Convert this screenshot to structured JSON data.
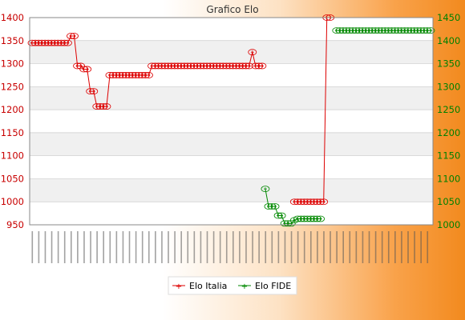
{
  "chart_data": {
    "type": "line",
    "title": "Grafico Elo",
    "y_left": {
      "min": 950,
      "max": 1400,
      "ticks": [
        950,
        1000,
        1050,
        1100,
        1150,
        1200,
        1250,
        1300,
        1350,
        1400
      ]
    },
    "y_right": {
      "min": 1000,
      "max": 1450,
      "ticks": [
        1000,
        1050,
        1100,
        1150,
        1200,
        1250,
        1300,
        1350,
        1400,
        1450
      ]
    },
    "legend_position": "bottom",
    "series": [
      {
        "name": "Elo Italia",
        "color": "#dd0000",
        "axis": "left",
        "start": 0,
        "values": [
          1345,
          1345,
          1345,
          1345,
          1345,
          1345,
          1345,
          1345,
          1345,
          1345,
          1345,
          1345,
          1360,
          1360,
          1295,
          1295,
          1288,
          1288,
          1240,
          1240,
          1207,
          1207,
          1207,
          1207,
          1275,
          1275,
          1275,
          1275,
          1275,
          1275,
          1275,
          1275,
          1275,
          1275,
          1275,
          1275,
          1275,
          1295,
          1295,
          1295,
          1295,
          1295,
          1295,
          1295,
          1295,
          1295,
          1295,
          1295,
          1295,
          1295,
          1295,
          1295,
          1295,
          1295,
          1295,
          1295,
          1295,
          1295,
          1295,
          1295,
          1295,
          1295,
          1295,
          1295,
          1295,
          1295,
          1295,
          1295,
          1325,
          1295,
          1295,
          1295,
          null,
          null,
          null,
          null,
          null,
          null,
          null,
          null,
          null,
          1000,
          1000,
          1000,
          1000,
          1000,
          1000,
          1000,
          1000,
          1000,
          1000,
          1400,
          1400
        ]
      },
      {
        "name": "Elo FIDE",
        "color": "#008800",
        "axis": "right",
        "start": 72,
        "values": [
          1078,
          1040,
          1040,
          1040,
          1020,
          1020,
          1003,
          1003,
          1003,
          1010,
          1013,
          1013,
          1013,
          1013,
          1013,
          1013,
          1013,
          1013,
          null,
          null,
          null,
          null,
          1422,
          1422,
          1422,
          1422,
          1422,
          1422,
          1422,
          1422,
          1422,
          1422,
          1422,
          1422,
          1422,
          1422,
          1422,
          1422,
          1422,
          1422,
          1422,
          1422,
          1422,
          1422,
          1422,
          1422,
          1422,
          1422,
          1422,
          1422,
          1422,
          1422
        ]
      }
    ],
    "total_points": 124
  }
}
